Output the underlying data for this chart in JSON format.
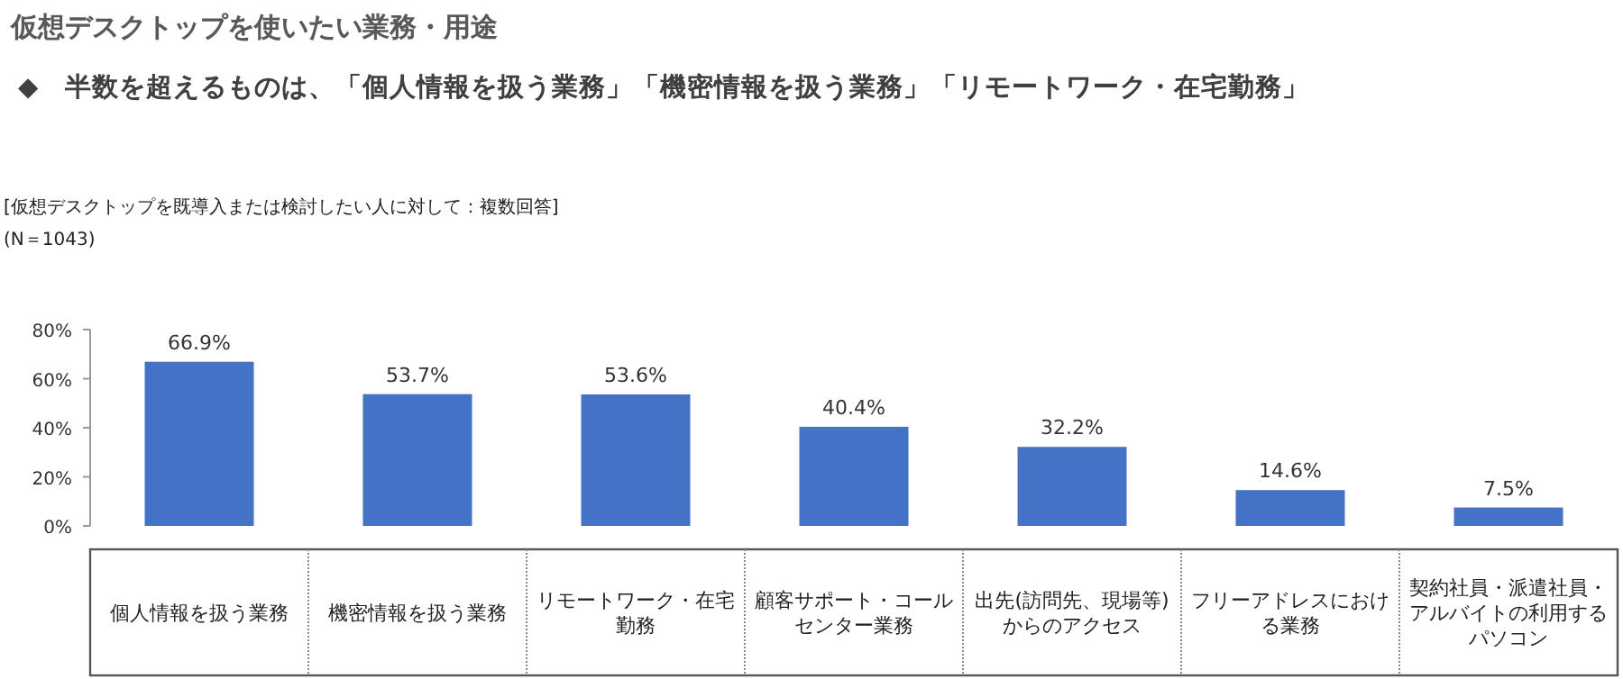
{
  "chart_data": {
    "type": "bar",
    "title": "仮想デスクトップを使いたい業務・用途",
    "subtitle": "◆　半数を超えるものは、「個人情報を扱う業務」「機密情報を扱う業務」「リモートワーク・在宅勤務」",
    "annotations": [
      "[仮想デスクトップを既導入または検討したい人に対して：複数回答]",
      "(N＝1043)"
    ],
    "categories": [
      "個人情報を扱う業務",
      "機密情報を扱う業務",
      "リモートワーク・在宅勤務",
      "顧客サポート・コールセンター業務",
      "出先(訪問先、現場等)からのアクセス",
      "フリーアドレスにおける業務",
      "契約社員・派遣社員・アルバイトの利用するパソコン"
    ],
    "values": [
      66.9,
      53.7,
      53.6,
      40.4,
      32.2,
      14.6,
      7.5
    ],
    "value_labels": [
      "66.9%",
      "53.7%",
      "53.6%",
      "40.4%",
      "32.2%",
      "14.6%",
      "7.5%"
    ],
    "color": "#4472c4",
    "ylim": [
      0,
      80
    ],
    "yticks": [
      {
        "value": 0,
        "label": "0%"
      },
      {
        "value": 20,
        "label": "20%"
      },
      {
        "value": 40,
        "label": "40%"
      },
      {
        "value": 60,
        "label": "60%"
      },
      {
        "value": 80,
        "label": "80%"
      }
    ]
  }
}
